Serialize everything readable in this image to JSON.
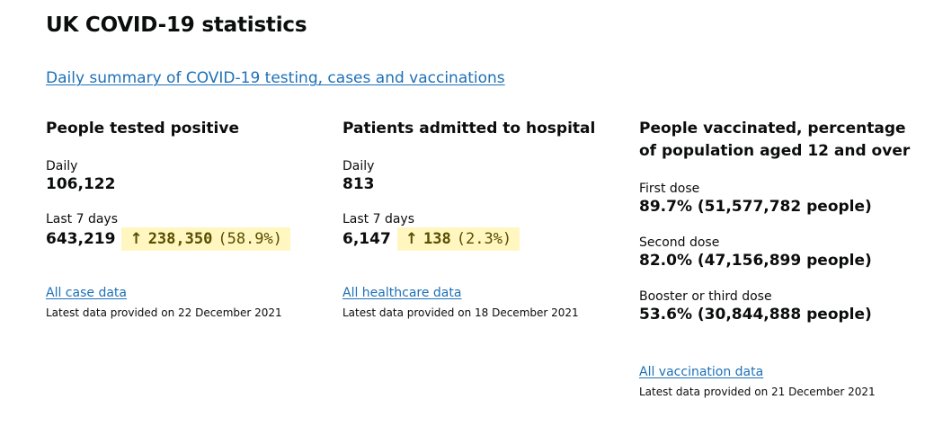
{
  "page": {
    "title": "UK COVID-19 statistics",
    "summary_link": "Daily summary of COVID-19 testing, cases and vaccinations"
  },
  "cases": {
    "heading": "People tested positive",
    "daily_label": "Daily",
    "daily_value": "106,122",
    "last7_label": "Last 7 days",
    "last7_value": "643,219",
    "change_arrow": "↑",
    "change_value": "238,350",
    "change_pct": "(58.9%)",
    "link": "All case data",
    "latest": "Latest data provided on 22 December 2021"
  },
  "healthcare": {
    "heading": "Patients admitted to hospital",
    "daily_label": "Daily",
    "daily_value": "813",
    "last7_label": "Last 7 days",
    "last7_value": "6,147",
    "change_arrow": "↑",
    "change_value": "138",
    "change_pct": "(2.3%)",
    "link": "All healthcare data",
    "latest": "Latest data provided on 18 December 2021"
  },
  "vaccinations": {
    "heading": "People vaccinated, percentage of population aged 12 and over",
    "first_label": "First dose",
    "first_value": "89.7% (51,577,782 people)",
    "second_label": "Second dose",
    "second_value": "82.0% (47,156,899 people)",
    "booster_label": "Booster or third dose",
    "booster_value": "53.6% (30,844,888 people)",
    "link": "All vaccination data",
    "latest": "Latest data provided on 21 December 2021"
  },
  "colors": {
    "link": "#1d70b8",
    "highlight_bg": "#fff7bf",
    "highlight_text": "#594d00",
    "text": "#0b0c0c"
  }
}
